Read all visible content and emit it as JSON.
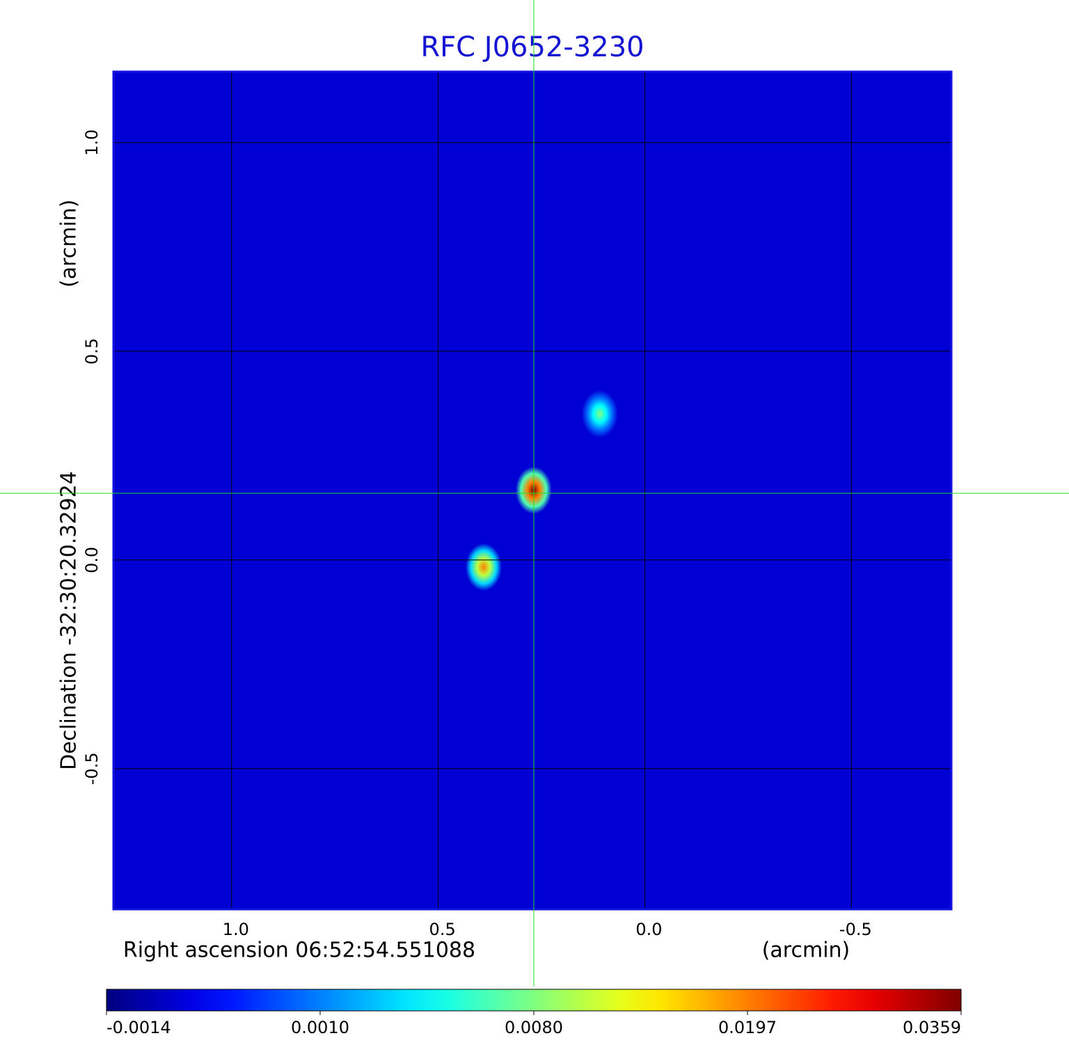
{
  "chart_data": {
    "type": "image",
    "title": "RFC J0652-3230",
    "x_label": "Right ascension  06:52:54.551088",
    "x_unit": "(arcmin)",
    "y_label": "Declination  -32:30:20.32924",
    "y_unit": "(arcmin)",
    "xlim": [
      1.286,
      -0.742
    ],
    "ylim": [
      -0.837,
      1.17
    ],
    "xticks": [
      {
        "value": 1.0,
        "label": "1.0"
      },
      {
        "value": 0.5,
        "label": "0.5"
      },
      {
        "value": 0.0,
        "label": "0.0"
      },
      {
        "value": -0.5,
        "label": "-0.5"
      }
    ],
    "yticks": [
      {
        "value": 1.0,
        "label": "1.0"
      },
      {
        "value": 0.5,
        "label": "0.5"
      },
      {
        "value": 0.0,
        "label": "0.0"
      },
      {
        "value": -0.5,
        "label": "-0.5"
      }
    ],
    "grid": true,
    "colormap": "jet",
    "background_value": -0.0006,
    "sources": [
      {
        "x": 0.269,
        "y": 0.167,
        "value": 0.0359
      },
      {
        "x": 0.39,
        "y": -0.017,
        "value": 0.0197
      },
      {
        "x": 0.109,
        "y": 0.35,
        "value": 0.008
      }
    ],
    "colorbar_ticks": [
      {
        "value": -0.0014,
        "label": "-0.0014"
      },
      {
        "value": 0.001,
        "label": "0.0010"
      },
      {
        "value": 0.008,
        "label": "0.0080"
      },
      {
        "value": 0.0197,
        "label": "0.0197"
      },
      {
        "value": 0.0359,
        "label": "0.0359"
      }
    ]
  }
}
